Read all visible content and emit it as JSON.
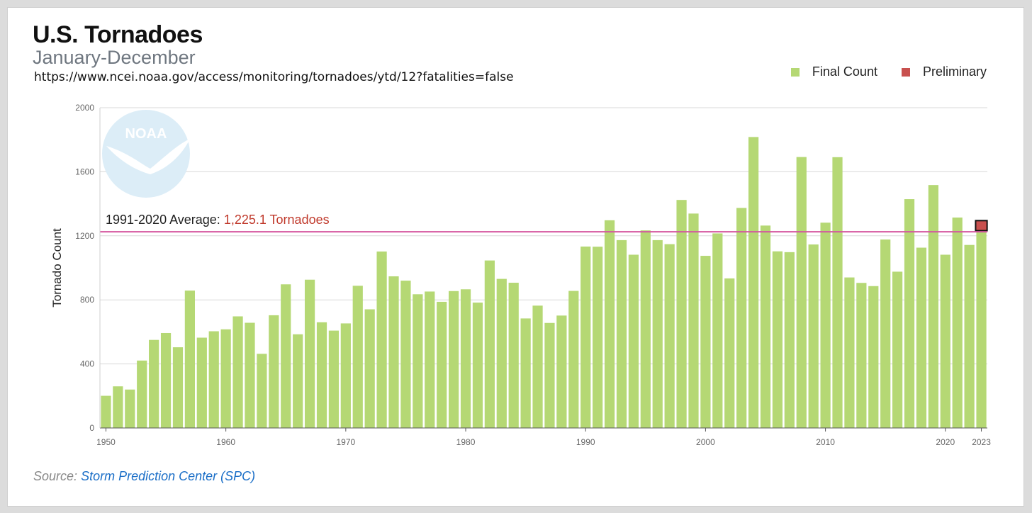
{
  "title": "U.S. Tornadoes",
  "subtitle": "January-December",
  "url": "https://www.ncei.noaa.gov/access/monitoring/tornadoes/ytd/12?fatalities=false",
  "legend": {
    "final": "Final Count",
    "preliminary": "Preliminary"
  },
  "average_label": "1991-2020 Average:",
  "average_value_text": "1,225.1 Tornadoes",
  "source_prefix": "Source:",
  "source_link": "Storm Prediction Center (SPC)",
  "logo_text": "NOAA",
  "colors": {
    "final": "#b5d874",
    "preliminary": "#c8504e",
    "average": "#d4579f",
    "avg_value": "#c0392b",
    "link": "#1a6ec7"
  },
  "chart_data": {
    "type": "bar",
    "title": "U.S. Tornadoes",
    "ylabel": "Tornado Count",
    "xlabel": "",
    "ylim": [
      0,
      2000
    ],
    "yticks": [
      0,
      400,
      800,
      1200,
      1600,
      2000
    ],
    "xtick_labels": [
      "1950",
      "1960",
      "1970",
      "1980",
      "1990",
      "2000",
      "2010",
      "2020",
      "2023"
    ],
    "average": 1225.1,
    "years": [
      1950,
      1951,
      1952,
      1953,
      1954,
      1955,
      1956,
      1957,
      1958,
      1959,
      1960,
      1961,
      1962,
      1963,
      1964,
      1965,
      1966,
      1967,
      1968,
      1969,
      1970,
      1971,
      1972,
      1973,
      1974,
      1975,
      1976,
      1977,
      1978,
      1979,
      1980,
      1981,
      1982,
      1983,
      1984,
      1985,
      1986,
      1987,
      1988,
      1989,
      1990,
      1991,
      1992,
      1993,
      1994,
      1995,
      1996,
      1997,
      1998,
      1999,
      2000,
      2001,
      2002,
      2003,
      2004,
      2005,
      2006,
      2007,
      2008,
      2009,
      2010,
      2011,
      2012,
      2013,
      2014,
      2015,
      2016,
      2017,
      2018,
      2019,
      2020,
      2021,
      2022,
      2023
    ],
    "series": [
      {
        "name": "Final Count",
        "values": [
          201,
          260,
          240,
          421,
          550,
          593,
          504,
          858,
          564,
          604,
          616,
          697,
          657,
          463,
          704,
          897,
          585,
          926,
          660,
          608,
          653,
          888,
          741,
          1102,
          947,
          920,
          835,
          852,
          788,
          855,
          866,
          783,
          1046,
          931,
          907,
          684,
          764,
          656,
          702,
          856,
          1133,
          1132,
          1297,
          1173,
          1082,
          1234,
          1173,
          1148,
          1424,
          1339,
          1075,
          1215,
          934,
          1374,
          1817,
          1264,
          1103,
          1098,
          1692,
          1146,
          1282,
          1691,
          940,
          906,
          886,
          1177,
          976,
          1429,
          1126,
          1517,
          1082,
          1314,
          1143,
          1232
        ]
      },
      {
        "name": "Preliminary",
        "values": [
          null,
          null,
          null,
          null,
          null,
          null,
          null,
          null,
          null,
          null,
          null,
          null,
          null,
          null,
          null,
          null,
          null,
          null,
          null,
          null,
          null,
          null,
          null,
          null,
          null,
          null,
          null,
          null,
          null,
          null,
          null,
          null,
          null,
          null,
          null,
          null,
          null,
          null,
          null,
          null,
          null,
          null,
          null,
          null,
          null,
          null,
          null,
          null,
          null,
          null,
          null,
          null,
          null,
          null,
          null,
          null,
          null,
          null,
          null,
          null,
          null,
          null,
          null,
          null,
          null,
          null,
          null,
          null,
          null,
          null,
          null,
          null,
          null,
          1295
        ]
      }
    ]
  }
}
